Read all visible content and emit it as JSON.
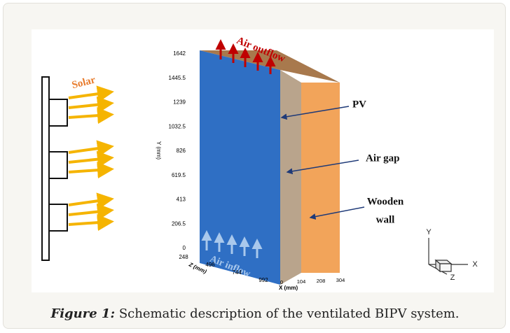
{
  "figure": {
    "labels": {
      "solar": "Solar",
      "air_outflow": "Air outflow",
      "air_inflow": "Air inflow",
      "pv": "PV",
      "air_gap": "Air gap",
      "wooden_wall": [
        "Wooden",
        "wall"
      ]
    },
    "y_axis": {
      "title": "Y (mm)",
      "ticks": [
        "1642",
        "1445.5",
        "1239",
        "1032.5",
        "826",
        "619.5",
        "413",
        "206.5",
        "0"
      ]
    },
    "z_axis": {
      "title": "Z (mm)",
      "ticks": [
        "248",
        "496",
        "744",
        "992"
      ]
    },
    "x_axis": {
      "title": "X (mm)",
      "ticks": [
        "0",
        "104",
        "208",
        "304"
      ]
    },
    "triad": {
      "y": "Y",
      "x": "X",
      "z": "Z"
    }
  },
  "caption": {
    "label": "Figure 1:",
    "text": " Schematic description of the ventilated BIPV system."
  }
}
